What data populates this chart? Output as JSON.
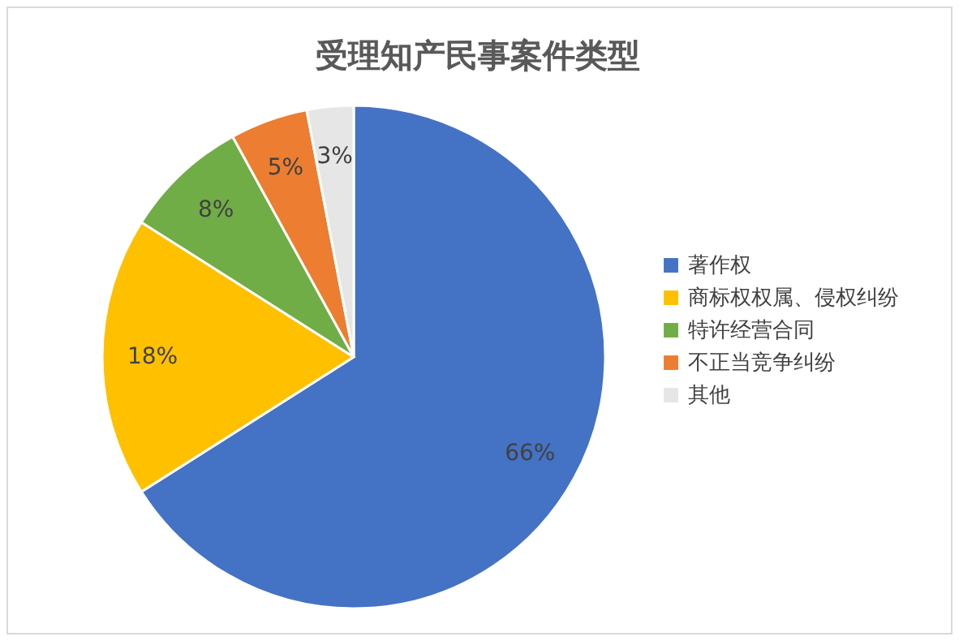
{
  "chart_data": {
    "type": "pie",
    "title": "受理知产民事案件类型",
    "categories": [
      "著作权",
      "商标权权属、侵权纠纷",
      "特许经营合同",
      "不正当竞争纠纷",
      "其他"
    ],
    "values": [
      66,
      18,
      8,
      5,
      3
    ],
    "colors": [
      "#4472c4",
      "#ffc000",
      "#70ad47",
      "#ed7d31",
      "#e7e6e6"
    ],
    "value_labels": [
      "66%",
      "18%",
      "8%",
      "5%",
      "3%"
    ],
    "legend": "right"
  }
}
